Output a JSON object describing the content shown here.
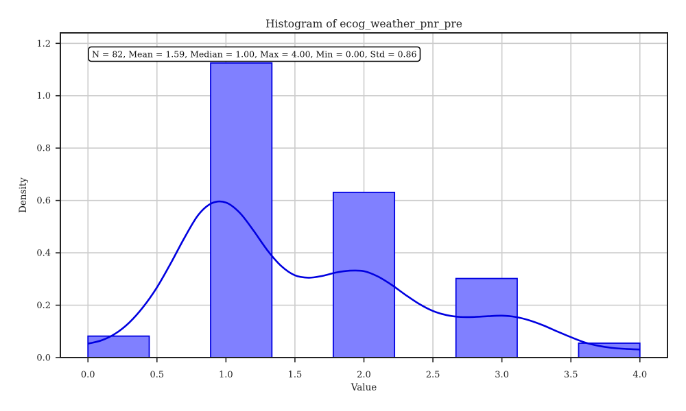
{
  "chart_data": {
    "type": "bar",
    "title": "Histogram of ecog_weather_pnr_pre",
    "xlabel": "Value",
    "ylabel": "Density",
    "xlim": [
      -0.2,
      4.2
    ],
    "ylim": [
      0,
      1.24
    ],
    "xticks": [
      "0.0",
      "0.5",
      "1.0",
      "1.5",
      "2.0",
      "2.5",
      "3.0",
      "3.5",
      "4.0"
    ],
    "yticks": [
      "0.0",
      "0.2",
      "0.4",
      "0.6",
      "0.8",
      "1.0",
      "1.2"
    ],
    "grid": true,
    "bins": [
      {
        "x0": 0.0,
        "x1": 0.444,
        "density": 0.082
      },
      {
        "x0": 0.889,
        "x1": 1.333,
        "density": 1.125
      },
      {
        "x0": 1.778,
        "x1": 2.222,
        "density": 0.631
      },
      {
        "x0": 2.667,
        "x1": 3.111,
        "density": 0.302
      },
      {
        "x0": 3.556,
        "x1": 4.0,
        "density": 0.055
      }
    ],
    "kde": {
      "x": [
        0.0,
        0.1,
        0.2,
        0.3,
        0.4,
        0.5,
        0.6,
        0.7,
        0.8,
        0.9,
        1.0,
        1.1,
        1.2,
        1.3,
        1.4,
        1.5,
        1.6,
        1.7,
        1.8,
        1.9,
        2.0,
        2.1,
        2.2,
        2.3,
        2.4,
        2.5,
        2.6,
        2.7,
        2.8,
        2.9,
        3.0,
        3.1,
        3.2,
        3.3,
        3.4,
        3.5,
        3.6,
        3.7,
        3.8,
        3.9,
        4.0
      ],
      "y": [
        0.053,
        0.066,
        0.092,
        0.134,
        0.193,
        0.268,
        0.36,
        0.458,
        0.545,
        0.59,
        0.592,
        0.553,
        0.485,
        0.41,
        0.35,
        0.314,
        0.305,
        0.312,
        0.325,
        0.332,
        0.33,
        0.31,
        0.278,
        0.24,
        0.205,
        0.178,
        0.162,
        0.155,
        0.155,
        0.158,
        0.16,
        0.155,
        0.142,
        0.123,
        0.1,
        0.078,
        0.058,
        0.045,
        0.037,
        0.033,
        0.031
      ]
    },
    "annotation": "N = 82, Mean = 1.59, Median = 1.00, Max = 4.00, Min = 0.00, Std = 0.86",
    "colors": {
      "bar_fill": "#8080ff",
      "bar_edge": "#0000e0",
      "kde_line": "#0000e0",
      "grid": "#cccccc",
      "axes": "#222222"
    }
  }
}
